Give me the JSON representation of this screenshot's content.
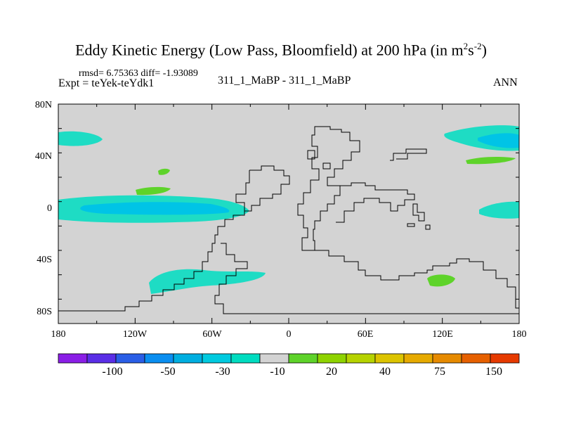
{
  "title": {
    "main": "Eddy Kinetic Energy (Low Pass, Bloomfield) at 200 hPa (in m",
    "sup1": "2",
    "mid": "s",
    "sup2": "-2",
    "end": ")"
  },
  "header": {
    "stats": "rmsd= 6.75363 diff= -1.93089",
    "expt": "Expt = teYek-teYdk1",
    "case": "311_1_MaBP - 311_1_MaBP",
    "season": "ANN"
  },
  "axes": {
    "lat_labels": [
      "80N",
      "40N",
      "0",
      "40S",
      "80S"
    ],
    "lon_labels": [
      "180",
      "120W",
      "60W",
      "0",
      "60E",
      "120E",
      "180"
    ]
  },
  "colorbar": {
    "labels": [
      "-100",
      "-50",
      "-30",
      "-10",
      "20",
      "40",
      "75",
      "150"
    ],
    "colors": [
      "#8a1ee6",
      "#5a2ee6",
      "#2a5ee6",
      "#0a8ef0",
      "#00aee0",
      "#00cadf",
      "#00dcc0",
      "#d3d3d3",
      "#5ed32a",
      "#8ed300",
      "#b6d300",
      "#dcc400",
      "#e6aa00",
      "#e68a00",
      "#e66000",
      "#e63a00"
    ]
  },
  "field": {
    "background": "#d3d3d3",
    "cyan": "#1edcc4",
    "blue": "#00c4e6",
    "green": "#5ed32a"
  }
}
